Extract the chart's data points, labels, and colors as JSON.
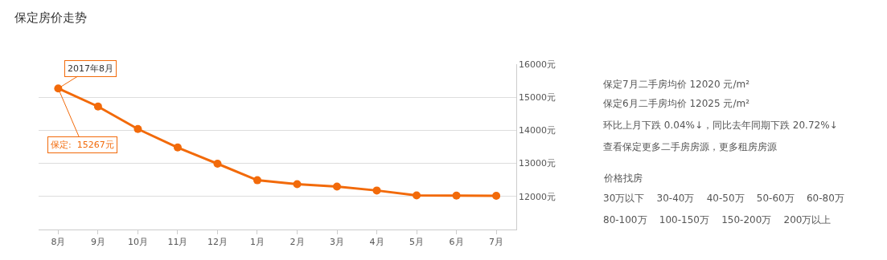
{
  "chart_data": {
    "type": "line",
    "title": "保定房价走势",
    "categories": [
      "8月",
      "9月",
      "10月",
      "11月",
      "12月",
      "1月",
      "2月",
      "3月",
      "4月",
      "5月",
      "6月",
      "7月"
    ],
    "series": [
      {
        "color": "#f26a0a",
        "values": [
          15267,
          14720,
          14040,
          13480,
          12990,
          12490,
          12370,
          12300,
          12180,
          12030,
          12025,
          12020
        ]
      }
    ],
    "ylim": [
      11000,
      16000
    ],
    "yticks": [
      {
        "value": 12000,
        "label": "12000元"
      },
      {
        "value": 13000,
        "label": "13000元"
      },
      {
        "value": 14000,
        "label": "14000元"
      },
      {
        "value": 15000,
        "label": "15000元"
      },
      {
        "value": 16000,
        "label": "16000元"
      }
    ],
    "grid": "y",
    "marker": "circle",
    "line_style": "solid",
    "annotations": [
      {
        "text": "2017年8月",
        "x": "8月",
        "y": 15267
      },
      {
        "text": "保定:  15267元",
        "x": "8月",
        "y": 15267
      },
      "保定7月二手房均价 12020 元/m²",
      "保定6月二手房均价 12025 元/m²",
      "环比上月下跌 0.04%↓，同比去年同期下跌 20.72%↓",
      "查看保定更多二手房房源，更多租房房源",
      "价格找房",
      "30万以下    30-40万    40-50万    50-60万    60-80万",
      "80-100万    100-150万    150-200万    200万以上"
    ]
  }
}
